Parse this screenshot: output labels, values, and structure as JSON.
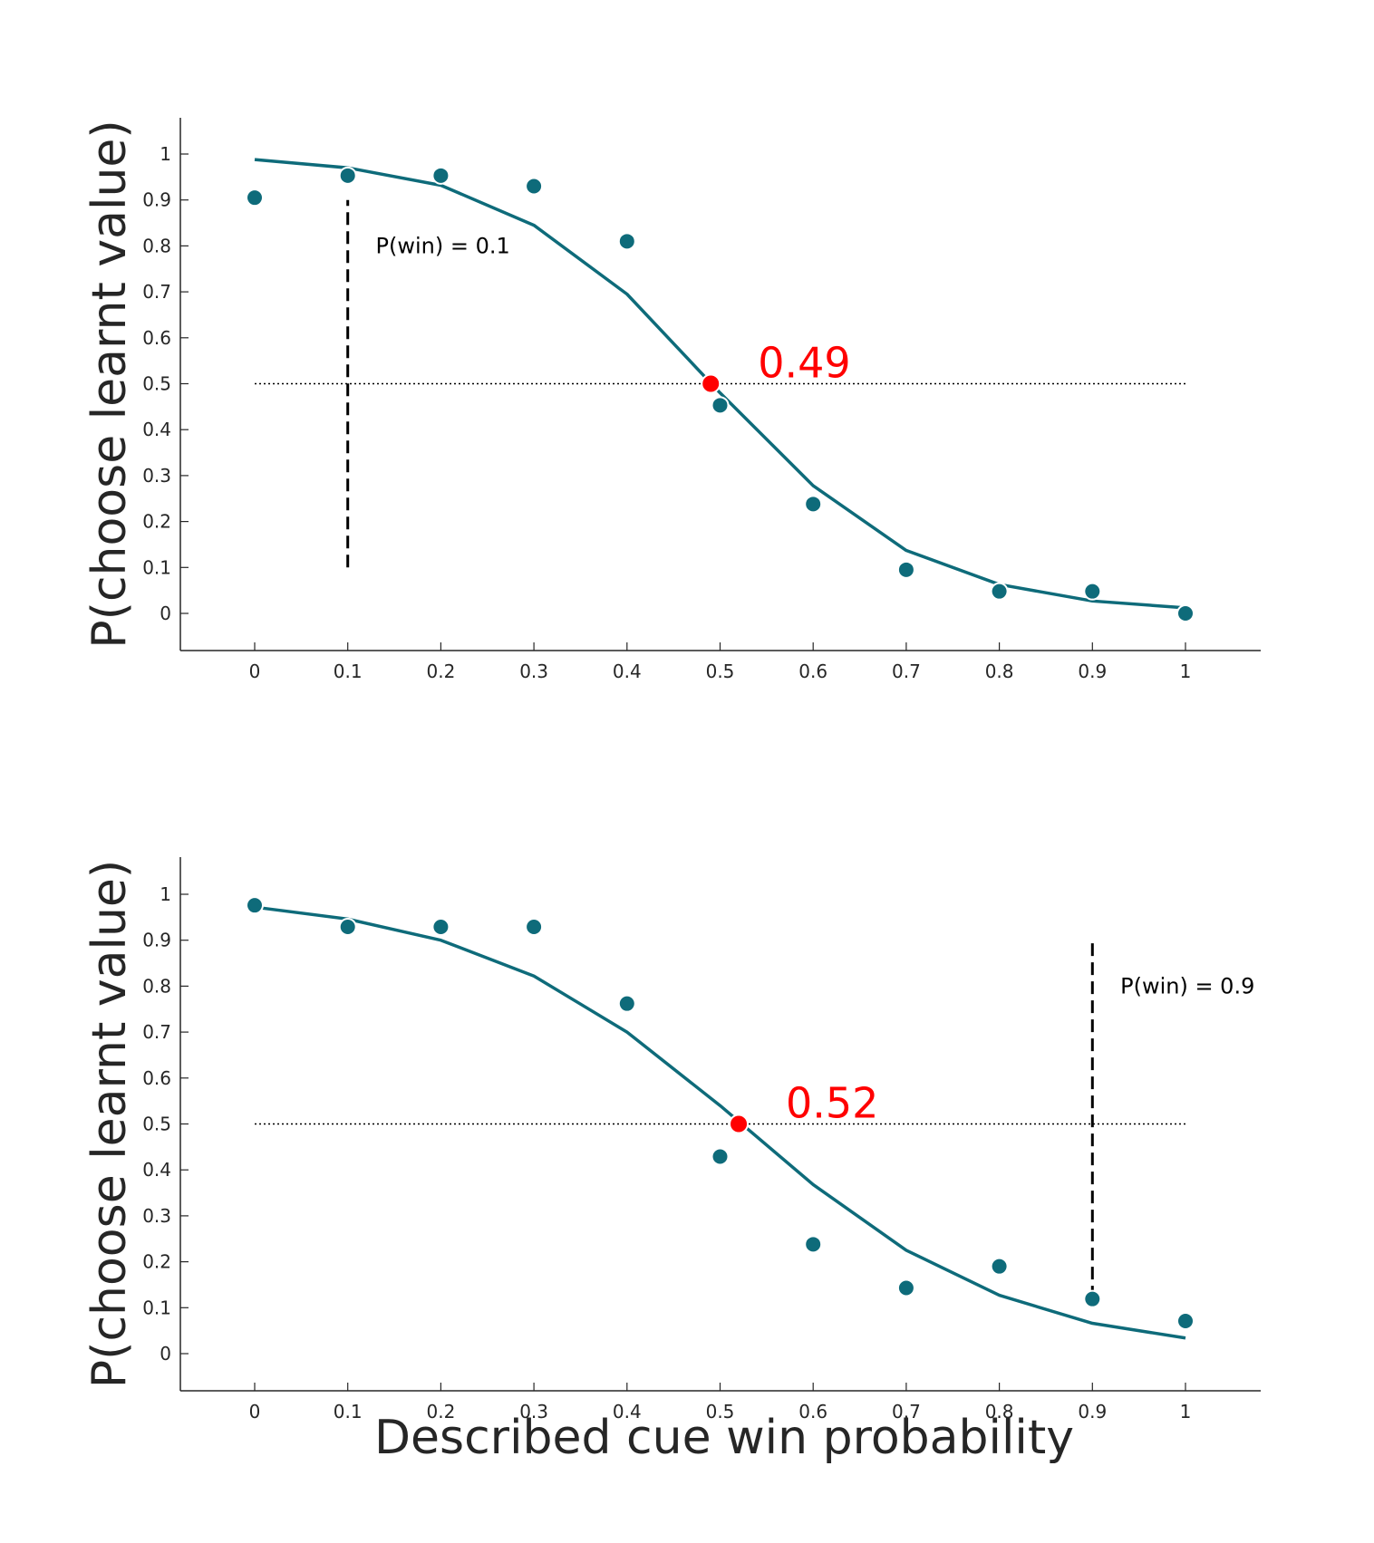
{
  "colors": {
    "series": "#0e6b7a",
    "pse": "#ff0000",
    "axis": "#262626",
    "reference": "#000000"
  },
  "chart_data": [
    {
      "type": "scatter",
      "ylabel": "P(choose learnt value)",
      "xlabel": "",
      "xlim": [
        -0.08,
        1.08
      ],
      "ylim": [
        -0.08,
        1.08
      ],
      "x_ticks": [
        "0",
        "0.1",
        "0.2",
        "0.3",
        "0.4",
        "0.5",
        "0.6",
        "0.7",
        "0.8",
        "0.9",
        "1"
      ],
      "y_ticks": [
        "0",
        "0.1",
        "0.2",
        "0.3",
        "0.4",
        "0.5",
        "0.6",
        "0.7",
        "0.8",
        "0.9",
        "1"
      ],
      "grid": false,
      "points": {
        "x": [
          0,
          0.1,
          0.2,
          0.3,
          0.4,
          0.5,
          0.6,
          0.7,
          0.8,
          0.9,
          1
        ],
        "y": [
          0.905,
          0.953,
          0.953,
          0.93,
          0.81,
          0.453,
          0.238,
          0.095,
          0.048,
          0.048,
          0.0
        ]
      },
      "fit": {
        "x": [
          0,
          0.1,
          0.2,
          0.3,
          0.4,
          0.5,
          0.6,
          0.7,
          0.8,
          0.9,
          1
        ],
        "y": [
          0.988,
          0.97,
          0.932,
          0.845,
          0.695,
          0.48,
          0.278,
          0.137,
          0.063,
          0.027,
          0.012
        ]
      },
      "reference_line_y": 0.5,
      "pse": {
        "x": 0.49,
        "y": 0.5,
        "label": "0.49"
      },
      "marker_line": {
        "x": 0.1,
        "y_from": 0.1,
        "y_to": 0.9
      },
      "annotation": {
        "text": "P(win) = 0.1",
        "x": 0.13,
        "y": 0.8
      }
    },
    {
      "type": "scatter",
      "ylabel": "P(choose learnt value)",
      "xlabel": "Described cue win probability",
      "xlim": [
        -0.08,
        1.08
      ],
      "ylim": [
        -0.08,
        1.08
      ],
      "x_ticks": [
        "0",
        "0.1",
        "0.2",
        "0.3",
        "0.4",
        "0.5",
        "0.6",
        "0.7",
        "0.8",
        "0.9",
        "1"
      ],
      "y_ticks": [
        "0",
        "0.1",
        "0.2",
        "0.3",
        "0.4",
        "0.5",
        "0.6",
        "0.7",
        "0.8",
        "0.9",
        "1"
      ],
      "grid": false,
      "points": {
        "x": [
          0,
          0.1,
          0.2,
          0.3,
          0.4,
          0.5,
          0.6,
          0.7,
          0.8,
          0.9,
          1
        ],
        "y": [
          0.976,
          0.929,
          0.929,
          0.929,
          0.762,
          0.429,
          0.238,
          0.143,
          0.19,
          0.119,
          0.071
        ]
      },
      "fit": {
        "x": [
          0,
          0.1,
          0.2,
          0.3,
          0.4,
          0.5,
          0.6,
          0.7,
          0.8,
          0.9,
          1
        ],
        "y": [
          0.972,
          0.946,
          0.9,
          0.822,
          0.7,
          0.54,
          0.368,
          0.225,
          0.127,
          0.066,
          0.034
        ]
      },
      "reference_line_y": 0.5,
      "pse": {
        "x": 0.52,
        "y": 0.5,
        "label": "0.52"
      },
      "marker_line": {
        "x": 0.9,
        "y_from": 0.12,
        "y_to": 0.9
      },
      "annotation": {
        "text": "P(win) = 0.9",
        "x": 0.93,
        "y": 0.8
      }
    }
  ]
}
